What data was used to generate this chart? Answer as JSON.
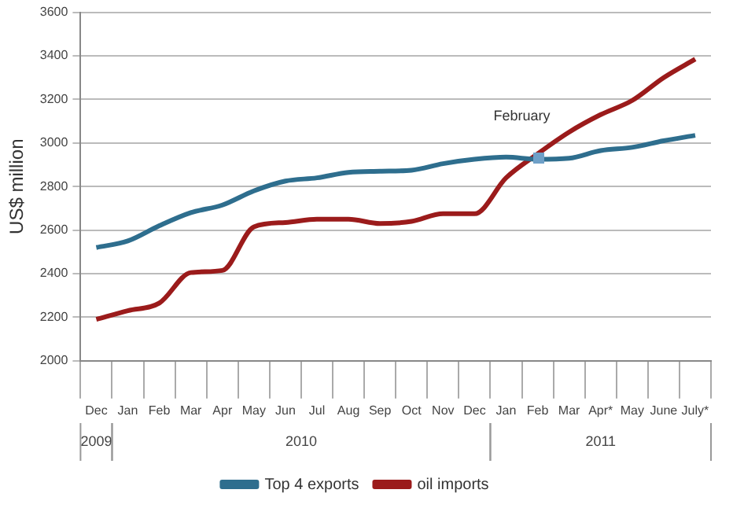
{
  "chart_data": {
    "type": "line",
    "ylabel": "US$ million",
    "categories": [
      "Dec",
      "Jan",
      "Feb",
      "Mar",
      "Apr",
      "May",
      "Jun",
      "Jul",
      "Aug",
      "Sep",
      "Oct",
      "Nov",
      "Dec",
      "Jan",
      "Feb",
      "Mar",
      "Apr*",
      "May",
      "June",
      "July*"
    ],
    "series": [
      {
        "name": "Top 4 exports",
        "color": "#2e6e8e",
        "values": [
          2520,
          2550,
          2620,
          2680,
          2715,
          2780,
          2825,
          2840,
          2865,
          2870,
          2875,
          2905,
          2925,
          2935,
          2925,
          2930,
          2965,
          2980,
          3010,
          3035
        ]
      },
      {
        "name": "oil imports",
        "color": "#9b1b1b",
        "values": [
          2190,
          2230,
          2265,
          2405,
          2415,
          2615,
          2635,
          2650,
          2650,
          2630,
          2640,
          2675,
          2675,
          2840,
          2950,
          3050,
          3130,
          3195,
          3300,
          3385
        ]
      }
    ],
    "ylim": [
      2000,
      3600
    ],
    "yticks": [
      2000,
      2200,
      2400,
      2600,
      2800,
      3000,
      3200,
      3400,
      3600
    ],
    "grid": "y",
    "legend": "bottom",
    "marker": "none",
    "line_style": "solid",
    "annotations": [
      "2009",
      "2010",
      "2011",
      "February"
    ]
  }
}
